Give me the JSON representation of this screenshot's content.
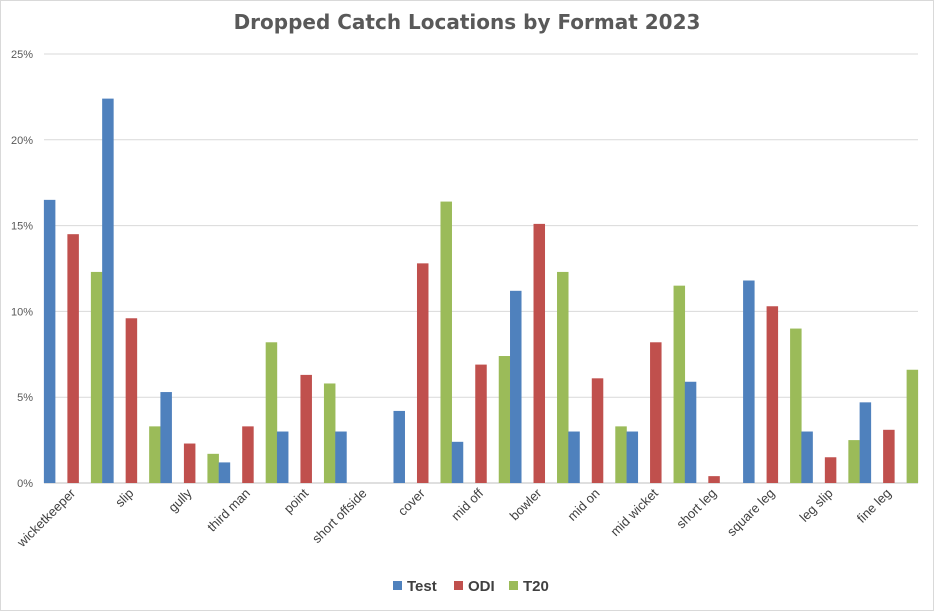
{
  "chart_data": {
    "type": "bar",
    "title": "Dropped Catch Locations by Format 2023",
    "xlabel": "",
    "ylabel": "",
    "ylim": [
      0,
      25
    ],
    "y_ticks": [
      "0%",
      "5%",
      "10%",
      "15%",
      "20%",
      "25%"
    ],
    "grid": true,
    "legend_position": "bottom",
    "categories": [
      "wicketkeeper",
      "slip",
      "gully",
      "third man",
      "point",
      "short offside",
      "cover",
      "mid off",
      "bowler",
      "mid on",
      "mid wicket",
      "short leg",
      "square leg",
      "leg slip",
      "fine leg"
    ],
    "series": [
      {
        "name": "Test",
        "color": "#4f81bd",
        "values": [
          16.5,
          22.4,
          5.3,
          1.2,
          3.0,
          3.0,
          4.2,
          2.4,
          11.2,
          3.0,
          3.0,
          5.9,
          11.8,
          3.0,
          4.7
        ]
      },
      {
        "name": "ODI",
        "color": "#c0504d",
        "values": [
          14.5,
          9.6,
          2.3,
          3.3,
          6.3,
          0.0,
          12.8,
          6.9,
          15.1,
          6.1,
          8.2,
          0.4,
          10.3,
          1.5,
          3.1
        ]
      },
      {
        "name": "T20",
        "color": "#9bbb59",
        "values": [
          12.3,
          3.3,
          1.7,
          8.2,
          5.8,
          0.0,
          16.4,
          7.4,
          12.3,
          3.3,
          11.5,
          0.0,
          9.0,
          2.5,
          6.6
        ]
      }
    ]
  }
}
